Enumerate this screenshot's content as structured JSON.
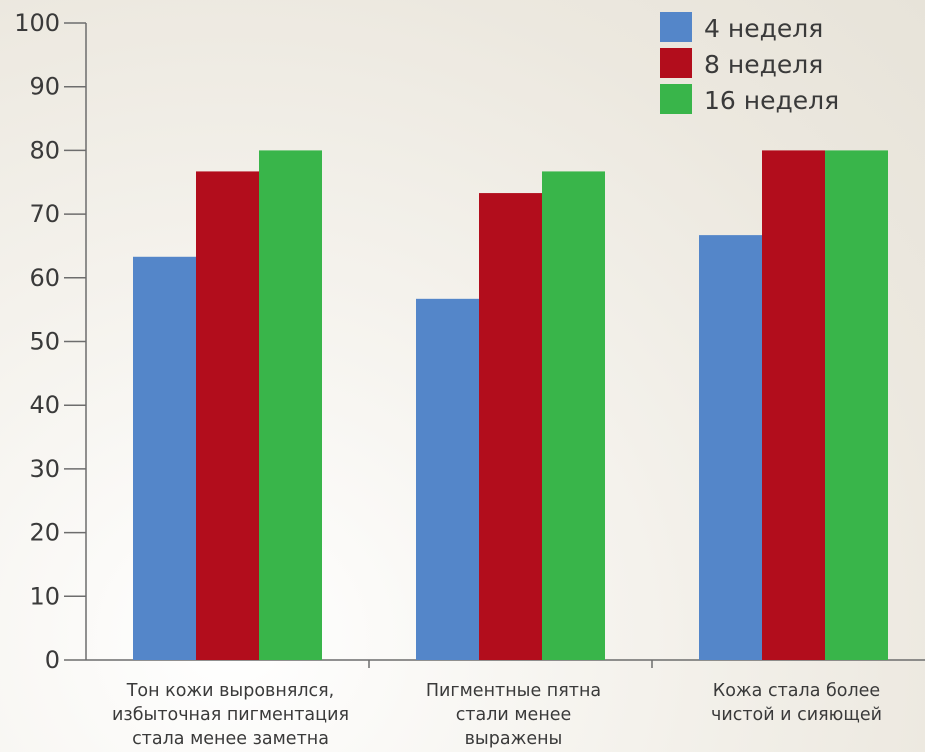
{
  "chart_data": {
    "type": "bar",
    "categories": [
      [
        "Тон кожи выровнялся,",
        "избыточная пигментация",
        "стала менее заметна"
      ],
      [
        "Пигментные пятна",
        "стали менее",
        "выражены"
      ],
      [
        "Кожа стала более",
        "чистой и сияющей"
      ]
    ],
    "series": [
      {
        "name": "4 неделя",
        "color": "#5486c9",
        "values": [
          63.3,
          56.7,
          66.7
        ]
      },
      {
        "name": "8 неделя",
        "color": "#b20d1c",
        "values": [
          76.7,
          73.3,
          80
        ]
      },
      {
        "name": "16 неделя",
        "color": "#39b54a",
        "values": [
          80,
          76.7,
          80
        ]
      }
    ],
    "y_ticks": [
      "0",
      "10",
      "20",
      "30",
      "40",
      "50",
      "60",
      "70",
      "80",
      "90",
      "100"
    ],
    "ylim": [
      0,
      100
    ],
    "title": "",
    "xlabel": "",
    "ylabel": "",
    "grid": false,
    "legend_position": "top-right",
    "axis_color": "#6d6d6d"
  }
}
